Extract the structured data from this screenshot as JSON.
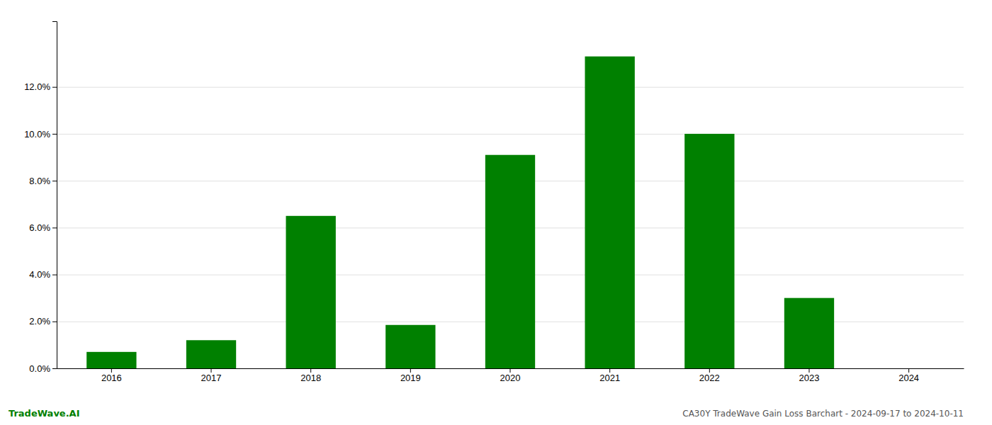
{
  "chart_data": {
    "type": "bar",
    "title": "CA30Y TradeWave Gain Loss Barchart - 2024-09-17 to 2024-10-11",
    "annotations": [
      {
        "text": "TradeWave.AI"
      }
    ],
    "categories": [
      "2016",
      "2017",
      "2018",
      "2019",
      "2020",
      "2021",
      "2022",
      "2023",
      "2024"
    ],
    "values": [
      0.007,
      0.012,
      0.065,
      0.0185,
      0.091,
      0.133,
      0.1,
      0.03,
      0.0
    ],
    "color": "#008000",
    "ylim": [
      0,
      0.148
    ],
    "yticks": [
      {
        "value": 0.0,
        "label": "0.0%"
      },
      {
        "value": 0.02,
        "label": "2.0%"
      },
      {
        "value": 0.04,
        "label": "4.0%"
      },
      {
        "value": 0.06,
        "label": "6.0%"
      },
      {
        "value": 0.08,
        "label": "8.0%"
      },
      {
        "value": 0.1,
        "label": "10.0%"
      },
      {
        "value": 0.12,
        "label": "12.0%"
      }
    ],
    "grid": true
  }
}
